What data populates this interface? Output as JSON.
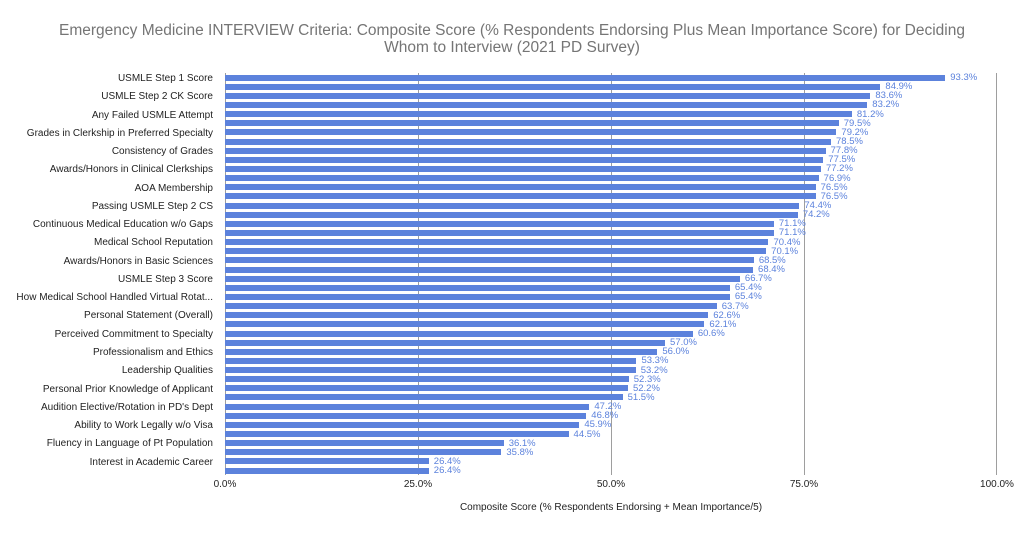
{
  "title": {
    "line1": "Emergency Medicine INTERVIEW Criteria: Composite Score (% Respondents Endorsing Plus Mean Importance Score) for Deciding",
    "line2": "Whom to Interview (2021 PD Survey)"
  },
  "colors": {
    "bar": "#5c82dc",
    "value_label": "#5c82dc",
    "gridline": "#9e9e9e",
    "axis_text": "#1f1f1f",
    "title": "#757575",
    "background": "#ffffff"
  },
  "chart_data": {
    "type": "bar",
    "orientation": "horizontal",
    "title": "Emergency Medicine INTERVIEW Criteria: Composite Score (% Respondents Endorsing Plus Mean Importance Score) for Deciding Whom to Interview (2021 PD Survey)",
    "xlabel": "Composite Score (% Respondents Endorsing + Mean Importance/5)",
    "ylabel": "",
    "xlim": [
      0,
      100
    ],
    "x_ticks": [
      "0.0%",
      "25.0%",
      "50.0%",
      "75.0%",
      "100.0%"
    ],
    "grid": true,
    "legend": false,
    "note": "44 bars; y-axis category labels shown only on every other bar",
    "categories": [
      "USMLE Step 1 Score",
      "",
      "USMLE Step 2 CK Score",
      "",
      "Any Failed USMLE Attempt",
      "",
      "Grades in Clerkship in Preferred Specialty",
      "",
      "Consistency of Grades",
      "",
      "Awards/Honors in Clinical Clerkships",
      "",
      "AOA Membership",
      "",
      "Passing USMLE Step 2 CS",
      "",
      "Continuous Medical Education w/o Gaps",
      "",
      "Medical School Reputation",
      "",
      "Awards/Honors in Basic Sciences",
      "",
      "USMLE Step 3 Score",
      "",
      "How Medical School Handled Virtual Rotat...",
      "",
      "Personal Statement (Overall)",
      "",
      "Perceived Commitment to Specialty",
      "",
      "Professionalism and Ethics",
      "",
      "Leadership Qualities",
      "",
      "Personal Prior Knowledge of Applicant",
      "",
      "Audition Elective/Rotation in PD's Dept",
      "",
      "Ability to Work Legally w/o Visa",
      "",
      "Fluency in Language of Pt Population",
      "",
      "Interest in Academic Career",
      ""
    ],
    "values": [
      93.3,
      84.9,
      83.6,
      83.2,
      81.2,
      79.5,
      79.2,
      78.5,
      77.8,
      77.5,
      77.2,
      76.9,
      76.5,
      76.5,
      74.4,
      74.2,
      71.1,
      71.1,
      70.4,
      70.1,
      68.5,
      68.4,
      66.7,
      65.4,
      65.4,
      63.7,
      62.6,
      62.1,
      60.6,
      57.0,
      56.0,
      53.3,
      53.2,
      52.3,
      52.2,
      51.5,
      47.2,
      46.8,
      45.9,
      44.5,
      36.1,
      35.8,
      26.4,
      26.4
    ],
    "value_labels": [
      "93.3%",
      "84.9%",
      "83.6%",
      "83.2%",
      "81.2%",
      "79.5%",
      "79.2%",
      "78.5%",
      "77.8%",
      "77.5%",
      "77.2%",
      "76.9%",
      "76.5%",
      "76.5%",
      "74.4%",
      "74.2%",
      "71.1%",
      "71.1%",
      "70.4%",
      "70.1%",
      "68.5%",
      "68.4%",
      "66.7%",
      "65.4%",
      "65.4%",
      "63.7%",
      "62.6%",
      "62.1%",
      "60.6%",
      "57.0%",
      "56.0%",
      "53.3%",
      "53.2%",
      "52.3%",
      "52.2%",
      "51.5%",
      "47.2%",
      "46.8%",
      "45.9%",
      "44.5%",
      "36.1%",
      "35.8%",
      "26.4%",
      "26.4%"
    ]
  }
}
